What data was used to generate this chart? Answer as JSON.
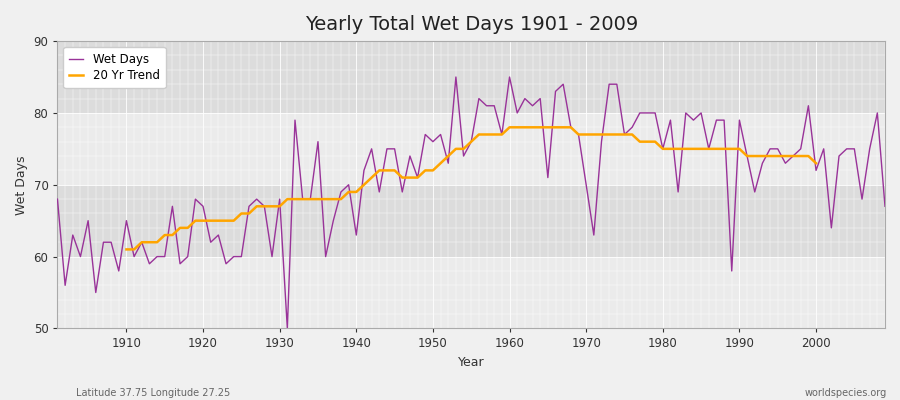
{
  "title": "Yearly Total Wet Days 1901 - 2009",
  "xlabel": "Year",
  "ylabel": "Wet Days",
  "subtitle_left": "Latitude 37.75 Longitude 27.25",
  "subtitle_right": "worldspecies.org",
  "wet_days_color": "#993399",
  "trend_color": "#FFA500",
  "bg_color": "#F0F0F0",
  "plot_bg_color_light": "#EBEBEB",
  "plot_bg_color_dark": "#DCDCDC",
  "grid_color": "#FFFFFF",
  "ylim": [
    50,
    90
  ],
  "yticks": [
    50,
    60,
    70,
    80,
    90
  ],
  "years": [
    1901,
    1902,
    1903,
    1904,
    1905,
    1906,
    1907,
    1908,
    1909,
    1910,
    1911,
    1912,
    1913,
    1914,
    1915,
    1916,
    1917,
    1918,
    1919,
    1920,
    1921,
    1922,
    1923,
    1924,
    1925,
    1926,
    1927,
    1928,
    1929,
    1930,
    1931,
    1932,
    1933,
    1934,
    1935,
    1936,
    1937,
    1938,
    1939,
    1940,
    1941,
    1942,
    1943,
    1944,
    1945,
    1946,
    1947,
    1948,
    1949,
    1950,
    1951,
    1952,
    1953,
    1954,
    1955,
    1956,
    1957,
    1958,
    1959,
    1960,
    1961,
    1962,
    1963,
    1964,
    1965,
    1966,
    1967,
    1968,
    1969,
    1970,
    1971,
    1972,
    1973,
    1974,
    1975,
    1976,
    1977,
    1978,
    1979,
    1980,
    1981,
    1982,
    1983,
    1984,
    1985,
    1986,
    1987,
    1988,
    1989,
    1990,
    1991,
    1992,
    1993,
    1994,
    1995,
    1996,
    1997,
    1998,
    1999,
    2000,
    2001,
    2002,
    2003,
    2004,
    2005,
    2006,
    2007,
    2008,
    2009
  ],
  "wet_days": [
    68,
    56,
    63,
    60,
    65,
    55,
    62,
    62,
    58,
    65,
    60,
    62,
    59,
    60,
    60,
    67,
    59,
    60,
    68,
    67,
    62,
    63,
    59,
    60,
    60,
    67,
    68,
    67,
    60,
    68,
    50,
    79,
    68,
    68,
    76,
    60,
    65,
    69,
    70,
    63,
    72,
    75,
    69,
    75,
    75,
    69,
    74,
    71,
    77,
    76,
    77,
    73,
    85,
    74,
    76,
    82,
    81,
    81,
    77,
    85,
    80,
    82,
    81,
    82,
    71,
    83,
    84,
    78,
    77,
    70,
    63,
    76,
    84,
    84,
    77,
    78,
    80,
    80,
    80,
    75,
    79,
    69,
    80,
    79,
    80,
    75,
    79,
    79,
    58,
    79,
    74,
    69,
    73,
    75,
    75,
    73,
    74,
    75,
    81,
    72,
    75,
    64,
    74,
    75,
    75,
    68,
    75,
    80,
    67
  ],
  "trend_years": [
    1910,
    1911,
    1912,
    1913,
    1914,
    1915,
    1916,
    1917,
    1918,
    1919,
    1920,
    1921,
    1922,
    1923,
    1924,
    1925,
    1926,
    1927,
    1928,
    1929,
    1930,
    1931,
    1932,
    1933,
    1934,
    1935,
    1936,
    1937,
    1938,
    1939,
    1940,
    1941,
    1942,
    1943,
    1944,
    1945,
    1946,
    1947,
    1948,
    1949,
    1950,
    1951,
    1952,
    1953,
    1954,
    1955,
    1956,
    1957,
    1958,
    1959,
    1960,
    1961,
    1962,
    1963,
    1964,
    1965,
    1966,
    1967,
    1968,
    1969,
    1970,
    1971,
    1972,
    1973,
    1974,
    1975,
    1976,
    1977,
    1978,
    1979,
    1980,
    1981,
    1982,
    1983,
    1984,
    1985,
    1986,
    1987,
    1988,
    1989,
    1990,
    1991,
    1992,
    1993,
    1994,
    1995,
    1996,
    1997,
    1998,
    1999,
    2000
  ],
  "trend_values": [
    61,
    61,
    62,
    62,
    62,
    63,
    63,
    64,
    64,
    65,
    65,
    65,
    65,
    65,
    65,
    66,
    66,
    67,
    67,
    67,
    67,
    68,
    68,
    68,
    68,
    68,
    68,
    68,
    68,
    69,
    69,
    70,
    71,
    72,
    72,
    72,
    71,
    71,
    71,
    72,
    72,
    73,
    74,
    75,
    75,
    76,
    77,
    77,
    77,
    77,
    78,
    78,
    78,
    78,
    78,
    78,
    78,
    78,
    78,
    77,
    77,
    77,
    77,
    77,
    77,
    77,
    77,
    76,
    76,
    76,
    75,
    75,
    75,
    75,
    75,
    75,
    75,
    75,
    75,
    75,
    75,
    74,
    74,
    74,
    74,
    74,
    74,
    74,
    74,
    74,
    73
  ]
}
